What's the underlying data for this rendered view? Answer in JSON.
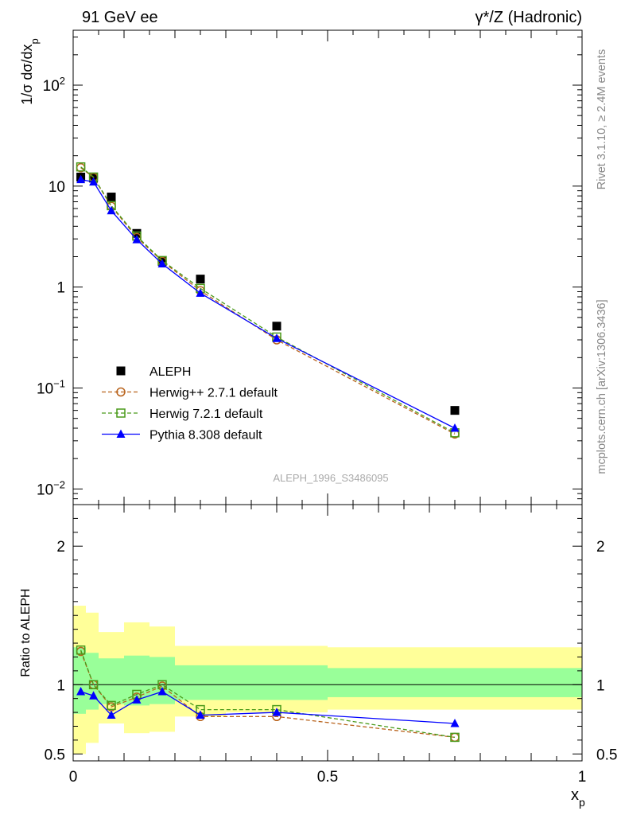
{
  "header": {
    "left": "91 GeV ee",
    "right": "γ*/Z (Hadronic)"
  },
  "side_labels": {
    "rivet": "Rivet 3.1.10, ≥ 2.4M events",
    "mcplots": "mcplots.cern.ch [arXiv:1306.3436]"
  },
  "analysis_id": "ALEPH_1996_S3486095",
  "colors": {
    "aleph": "#000000",
    "herwigpp": "#b8621b",
    "herwig7": "#4a9a1a",
    "pythia": "#0000ff",
    "band_outer": "#ffff99",
    "band_inner": "#99ff99"
  },
  "chart_data": [
    {
      "type": "scatter",
      "xlabel": "x_p",
      "ylabel": "1/σ dσ/dx_p",
      "yscale": "log",
      "ylim": [
        0.007,
        350
      ],
      "xlim": [
        0,
        1
      ],
      "legend_position": "lower-left",
      "x": [
        0.015,
        0.04,
        0.075,
        0.125,
        0.175,
        0.25,
        0.4,
        0.75
      ],
      "series": [
        {
          "name": "ALEPH",
          "key": "aleph",
          "marker": "square-filled",
          "values": [
            12.3,
            12.0,
            7.8,
            3.4,
            1.8,
            1.2,
            0.41,
            0.06
          ]
        },
        {
          "name": "Herwig++ 2.7.1 default",
          "key": "herwigpp",
          "marker": "circle-open",
          "line": "dashed",
          "values": [
            15.2,
            12.2,
            6.3,
            3.1,
            1.8,
            0.92,
            0.3,
            0.035
          ]
        },
        {
          "name": "Herwig 7.2.1 default",
          "key": "herwig7",
          "marker": "square-open",
          "line": "dashed",
          "values": [
            15.5,
            12.3,
            6.4,
            3.2,
            1.83,
            0.97,
            0.32,
            0.036
          ]
        },
        {
          "name": "Pythia 8.308 default",
          "key": "pythia",
          "marker": "triangle-filled",
          "line": "solid",
          "values": [
            11.6,
            11.0,
            5.7,
            2.95,
            1.7,
            0.87,
            0.31,
            0.04
          ]
        }
      ],
      "yticks": [
        {
          "value": 0.01,
          "label": "10",
          "exp": "−2"
        },
        {
          "value": 0.1,
          "label": "10",
          "exp": "−1"
        },
        {
          "value": 1,
          "label": "1",
          "exp": ""
        },
        {
          "value": 10,
          "label": "10",
          "exp": ""
        },
        {
          "value": 100,
          "label": "10",
          "exp": "2"
        }
      ]
    },
    {
      "type": "line",
      "xlabel": "x_p",
      "ylabel": "Ratio to ALEPH",
      "ylim": [
        0.45,
        2.3
      ],
      "xlim": [
        0,
        1
      ],
      "x": [
        0.015,
        0.04,
        0.075,
        0.125,
        0.175,
        0.25,
        0.4,
        0.75
      ],
      "series": [
        {
          "name": "Herwig++ 2.7.1 default",
          "key": "herwigpp",
          "values": [
            1.24,
            1.0,
            0.84,
            0.91,
            0.99,
            0.77,
            0.77,
            0.62
          ]
        },
        {
          "name": "Herwig 7.2.1 default",
          "key": "herwig7",
          "values": [
            1.25,
            1.0,
            0.85,
            0.93,
            1.0,
            0.82,
            0.82,
            0.62
          ]
        },
        {
          "name": "Pythia 8.308 default",
          "key": "pythia",
          "values": [
            0.95,
            0.92,
            0.78,
            0.89,
            0.95,
            0.78,
            0.8,
            0.72
          ]
        }
      ],
      "bands": [
        {
          "x0": 0.0,
          "x1": 0.025,
          "inner": [
            0.79,
            1.27
          ],
          "outer": [
            0.5,
            1.57
          ]
        },
        {
          "x0": 0.025,
          "x1": 0.05,
          "inner": [
            0.82,
            1.23
          ],
          "outer": [
            0.58,
            1.52
          ]
        },
        {
          "x0": 0.05,
          "x1": 0.1,
          "inner": [
            0.86,
            1.19
          ],
          "outer": [
            0.72,
            1.38
          ]
        },
        {
          "x0": 0.1,
          "x1": 0.15,
          "inner": [
            0.85,
            1.21
          ],
          "outer": [
            0.65,
            1.45
          ]
        },
        {
          "x0": 0.15,
          "x1": 0.2,
          "inner": [
            0.86,
            1.2
          ],
          "outer": [
            0.66,
            1.42
          ]
        },
        {
          "x0": 0.2,
          "x1": 0.3,
          "inner": [
            0.89,
            1.14
          ],
          "outer": [
            0.77,
            1.28
          ]
        },
        {
          "x0": 0.3,
          "x1": 0.5,
          "inner": [
            0.89,
            1.14
          ],
          "outer": [
            0.8,
            1.28
          ]
        },
        {
          "x0": 0.5,
          "x1": 1.0,
          "inner": [
            0.91,
            1.12
          ],
          "outer": [
            0.82,
            1.27
          ]
        }
      ],
      "yticks": [
        {
          "value": 0.5,
          "label": "0.5"
        },
        {
          "value": 1,
          "label": "1"
        },
        {
          "value": 2,
          "label": "2"
        }
      ],
      "xticks": [
        {
          "value": 0,
          "label": "0"
        },
        {
          "value": 0.5,
          "label": "0.5"
        },
        {
          "value": 1,
          "label": "1"
        }
      ]
    }
  ]
}
